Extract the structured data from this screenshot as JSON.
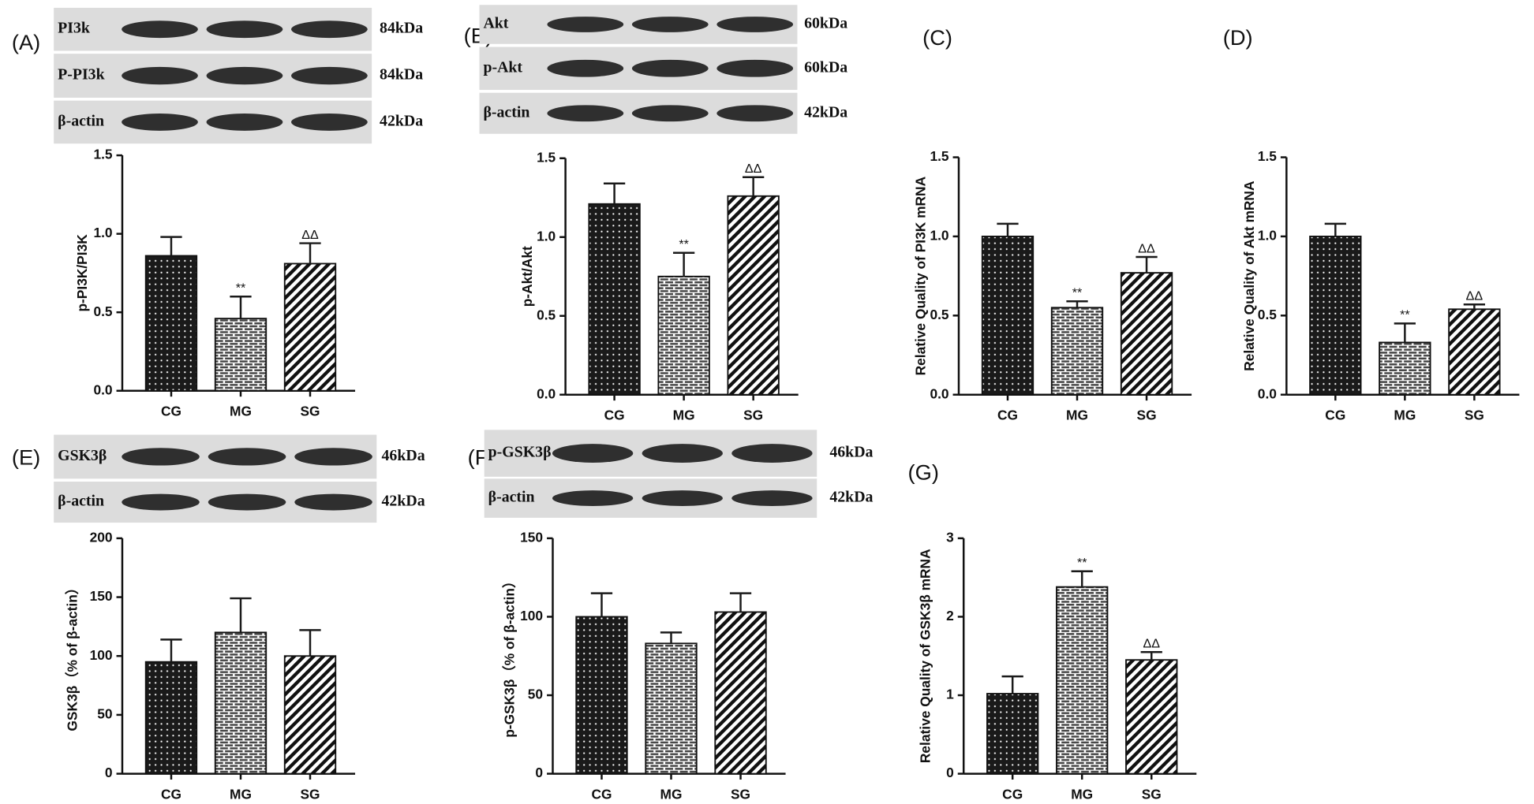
{
  "chart_data": [
    {
      "type": "bar",
      "panel": "(A)",
      "blots": [
        {
          "protein": "PI3k",
          "size": "84kDa"
        },
        {
          "protein": "P-PI3k",
          "size": "84kDa"
        },
        {
          "protein": "β-actin",
          "size": "42kDa"
        }
      ],
      "y_label": "p-PI3K/PI3K",
      "categories": [
        "CG",
        "MG",
        "SG"
      ],
      "values": [
        0.86,
        0.46,
        0.81
      ],
      "errors": [
        0.12,
        0.14,
        0.13
      ],
      "annotations": [
        null,
        "**",
        "ΔΔ"
      ],
      "ylim": [
        0,
        1.5
      ],
      "yticks": [
        {
          "value": 0,
          "label": "0.0"
        },
        {
          "value": 0.5,
          "label": "0.5"
        },
        {
          "value": 1,
          "label": "1.0"
        },
        {
          "value": 1.5,
          "label": "1.5"
        }
      ]
    },
    {
      "type": "bar",
      "panel": "(B)",
      "blots": [
        {
          "protein": "Akt",
          "size": "60kDa"
        },
        {
          "protein": "p-Akt",
          "size": "60kDa"
        },
        {
          "protein": "β-actin",
          "size": "42kDa"
        }
      ],
      "y_label": "p-Akt/Akt",
      "categories": [
        "CG",
        "MG",
        "SG"
      ],
      "values": [
        1.21,
        0.75,
        1.26
      ],
      "errors": [
        0.13,
        0.15,
        0.12
      ],
      "annotations": [
        null,
        "**",
        "ΔΔ"
      ],
      "ylim": [
        0,
        1.5
      ],
      "yticks": [
        {
          "value": 0,
          "label": "0.0"
        },
        {
          "value": 0.5,
          "label": "0.5"
        },
        {
          "value": 1,
          "label": "1.0"
        },
        {
          "value": 1.5,
          "label": "1.5"
        }
      ]
    },
    {
      "type": "bar",
      "panel": "(C)",
      "y_label": "Relative Quality of PI3K mRNA",
      "categories": [
        "CG",
        "MG",
        "SG"
      ],
      "values": [
        1.0,
        0.55,
        0.77
      ],
      "errors": [
        0.08,
        0.04,
        0.1
      ],
      "annotations": [
        null,
        "**",
        "ΔΔ"
      ],
      "ylim": [
        0,
        1.5
      ],
      "yticks": [
        {
          "value": 0,
          "label": "0.0"
        },
        {
          "value": 0.5,
          "label": "0.5"
        },
        {
          "value": 1,
          "label": "1.0"
        },
        {
          "value": 1.5,
          "label": "1.5"
        }
      ]
    },
    {
      "type": "bar",
      "panel": "(D)",
      "y_label": "Relative Quality of Akt mRNA",
      "categories": [
        "CG",
        "MG",
        "SG"
      ],
      "values": [
        1.0,
        0.33,
        0.54
      ],
      "errors": [
        0.08,
        0.12,
        0.03
      ],
      "annotations": [
        null,
        "**",
        "ΔΔ"
      ],
      "ylim": [
        0,
        1.5
      ],
      "yticks": [
        {
          "value": 0,
          "label": "0.0"
        },
        {
          "value": 0.5,
          "label": "0.5"
        },
        {
          "value": 1,
          "label": "1.0"
        },
        {
          "value": 1.5,
          "label": "1.5"
        }
      ]
    },
    {
      "type": "bar",
      "panel": "(E)",
      "blots": [
        {
          "protein": "GSK3β",
          "size": "46kDa"
        },
        {
          "protein": "β-actin",
          "size": "42kDa"
        }
      ],
      "y_label": "GSK3β（% of β-actin）",
      "categories": [
        "CG",
        "MG",
        "SG"
      ],
      "values": [
        95,
        120,
        100
      ],
      "errors": [
        19,
        29,
        22
      ],
      "ylim": [
        0,
        200
      ],
      "yticks": [
        0,
        50,
        100,
        150,
        200
      ]
    },
    {
      "type": "bar",
      "panel": "(F)",
      "blots": [
        {
          "protein": "p-GSK3β",
          "size": "46kDa"
        },
        {
          "protein": "β-actin",
          "size": "42kDa"
        }
      ],
      "y_label": "p-GSK3β（% of β-actin）",
      "categories": [
        "CG",
        "MG",
        "SG"
      ],
      "values": [
        100,
        83,
        103
      ],
      "errors": [
        15,
        7,
        12
      ],
      "ylim": [
        0,
        150
      ],
      "yticks": [
        0,
        50,
        100,
        150
      ]
    },
    {
      "type": "bar",
      "panel": "(G)",
      "y_label": "Relative Quality of GSK3β mRNA",
      "categories": [
        "CG",
        "MG",
        "SG"
      ],
      "values": [
        1.02,
        2.38,
        1.45
      ],
      "errors": [
        0.22,
        0.2,
        0.1
      ],
      "annotations": [
        null,
        "**",
        "ΔΔ"
      ],
      "ylim": [
        0,
        3
      ],
      "yticks": [
        0,
        1,
        2,
        3
      ]
    }
  ]
}
